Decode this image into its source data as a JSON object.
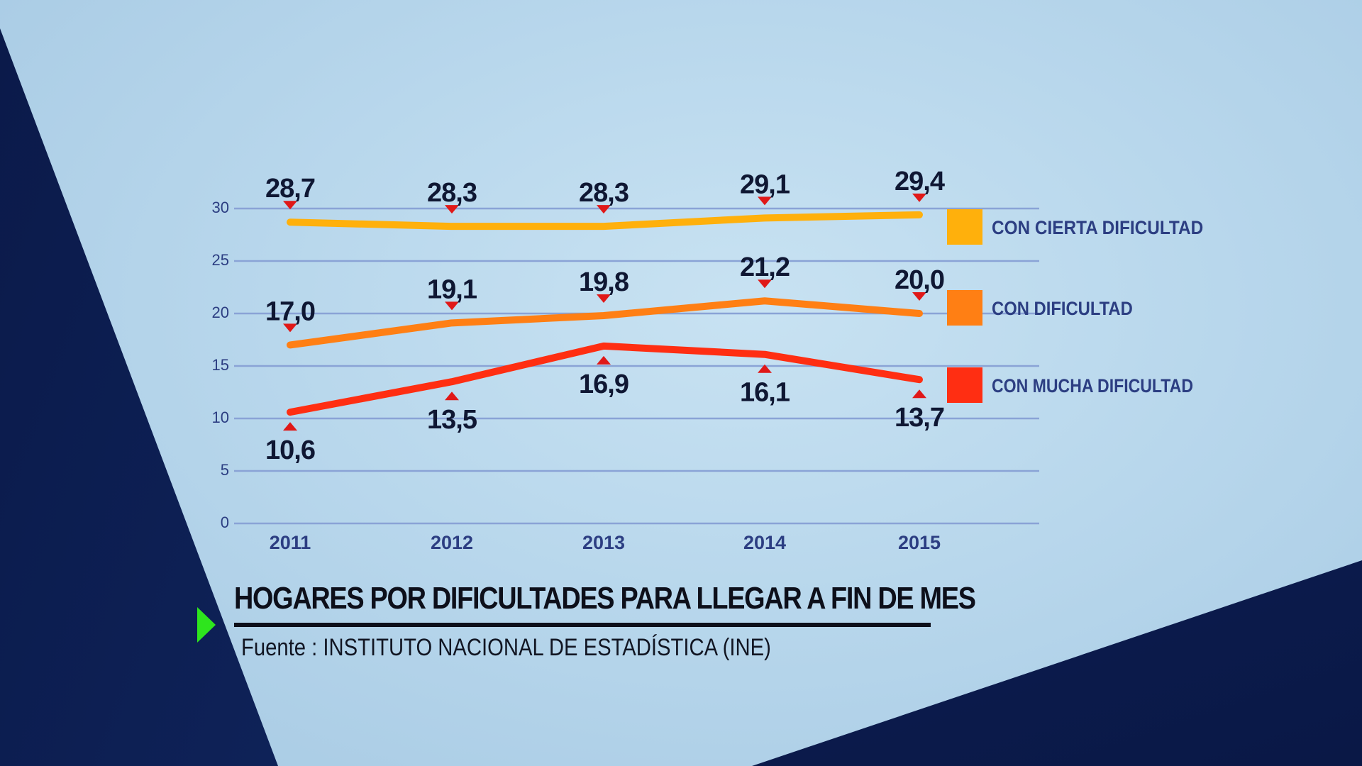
{
  "chart_data": {
    "type": "line",
    "title": "HOGARES POR DIFICULTADES PARA LLEGAR A FIN DE MES",
    "source": "Fuente : INSTITUTO NACIONAL DE ESTADÍSTICA (INE)",
    "categories": [
      "2011",
      "2012",
      "2013",
      "2014",
      "2015"
    ],
    "ylim": [
      0,
      30
    ],
    "yticks": [
      "0",
      "5",
      "10",
      "15",
      "20",
      "25",
      "30"
    ],
    "grid": true,
    "legend_position": "right",
    "series": [
      {
        "name": "CON CIERTA DIFICULTAD",
        "color": "#ffb00c",
        "values": [
          28.7,
          28.3,
          28.3,
          29.1,
          29.4
        ],
        "labels": [
          "28,7",
          "28,3",
          "28,3",
          "29,1",
          "29,4"
        ],
        "label_side": "above"
      },
      {
        "name": "CON DIFICULTAD",
        "color": "#ff7f14",
        "values": [
          17.0,
          19.1,
          19.8,
          21.2,
          20.0
        ],
        "labels": [
          "17,0",
          "19,1",
          "19,8",
          "21,2",
          "20,0"
        ],
        "label_side": "above"
      },
      {
        "name": "CON MUCHA DIFICULTAD",
        "color": "#ff2e12",
        "values": [
          10.6,
          13.5,
          16.9,
          16.1,
          13.7
        ],
        "labels": [
          "10,6",
          "13,5",
          "16,9",
          "16,1",
          "13,7"
        ],
        "label_side": "below"
      }
    ]
  },
  "colors": {
    "gridline": "#8aa3d6",
    "axis_text": "#2c3e82",
    "value_text": "#0f1733",
    "marker": "#e01818",
    "dark_panel": "#0b1c4f",
    "accent_arrow": "#2ee51d"
  }
}
